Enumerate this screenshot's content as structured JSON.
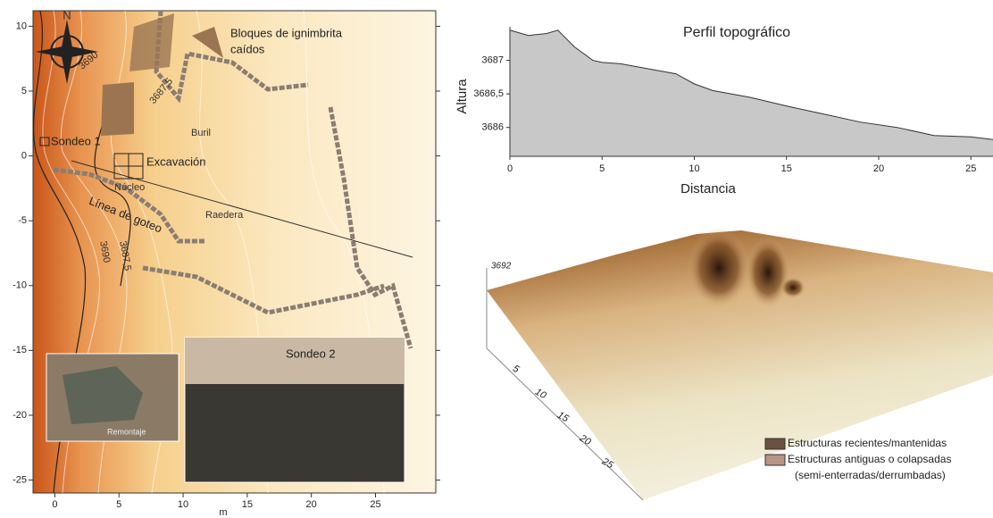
{
  "map": {
    "xlim": [
      -1.7,
      29.7
    ],
    "ylim": [
      -26,
      11.2
    ],
    "xticks": [
      0,
      5,
      10,
      15,
      20,
      25
    ],
    "yticks": [
      10,
      5,
      0,
      -5,
      -10,
      -15,
      -20,
      -25
    ],
    "xlabel": "m",
    "labels": {
      "north": "N",
      "blocks_1": "Bloques de ignimbrita",
      "blocks_2": "caídos",
      "sondeo1": "Sondeo 1",
      "buril": "Buril",
      "excavacion": "Excavación",
      "nucleo": "Núcleo",
      "linea": "Línea de goteo",
      "raedera": "Raedera",
      "c3690a": "3690",
      "c3687a": "3687,5",
      "c3690b": "3690",
      "c3687b": "3687,5",
      "sondeo2": "Sondeo 2",
      "remontaje": "Remontaje"
    }
  },
  "chart_data": {
    "type": "area",
    "title": "Perfil topográfico",
    "x_label": "Distancia",
    "y_label": "Altura",
    "color": "#c8c8c8",
    "x": [
      0,
      1,
      2,
      2.6,
      3.5,
      4.5,
      5,
      6,
      7,
      8,
      9,
      10,
      11,
      13,
      15,
      17,
      19,
      21,
      23,
      25,
      26.2
    ],
    "values": [
      3687.45,
      3687.37,
      3687.4,
      3687.45,
      3687.2,
      3687.0,
      3686.97,
      3686.95,
      3686.9,
      3686.85,
      3686.8,
      3686.65,
      3686.55,
      3686.45,
      3686.32,
      3686.2,
      3686.08,
      3686.0,
      3685.88,
      3685.86,
      3685.82
    ],
    "xlim": [
      0,
      26.2
    ],
    "ylim": [
      3685.57,
      3687.5
    ],
    "xticks": [
      0,
      5,
      10,
      15,
      20,
      25
    ],
    "yticks": [
      3686,
      {
        "value": 3686.5,
        "label": "3686,5"
      },
      3687
    ]
  },
  "surface": {
    "z_label": "3692",
    "depth_ticks": [
      "5",
      "10",
      "15",
      "20",
      "25"
    ],
    "legend": [
      {
        "name": "Estructuras recientes/mantenidas",
        "color": "#6b5142"
      },
      {
        "name": "Estructuras antiguas o colapsadas",
        "color": "#b89484"
      }
    ],
    "legend_note": "(semi-enterradas/derrumbadas)"
  }
}
